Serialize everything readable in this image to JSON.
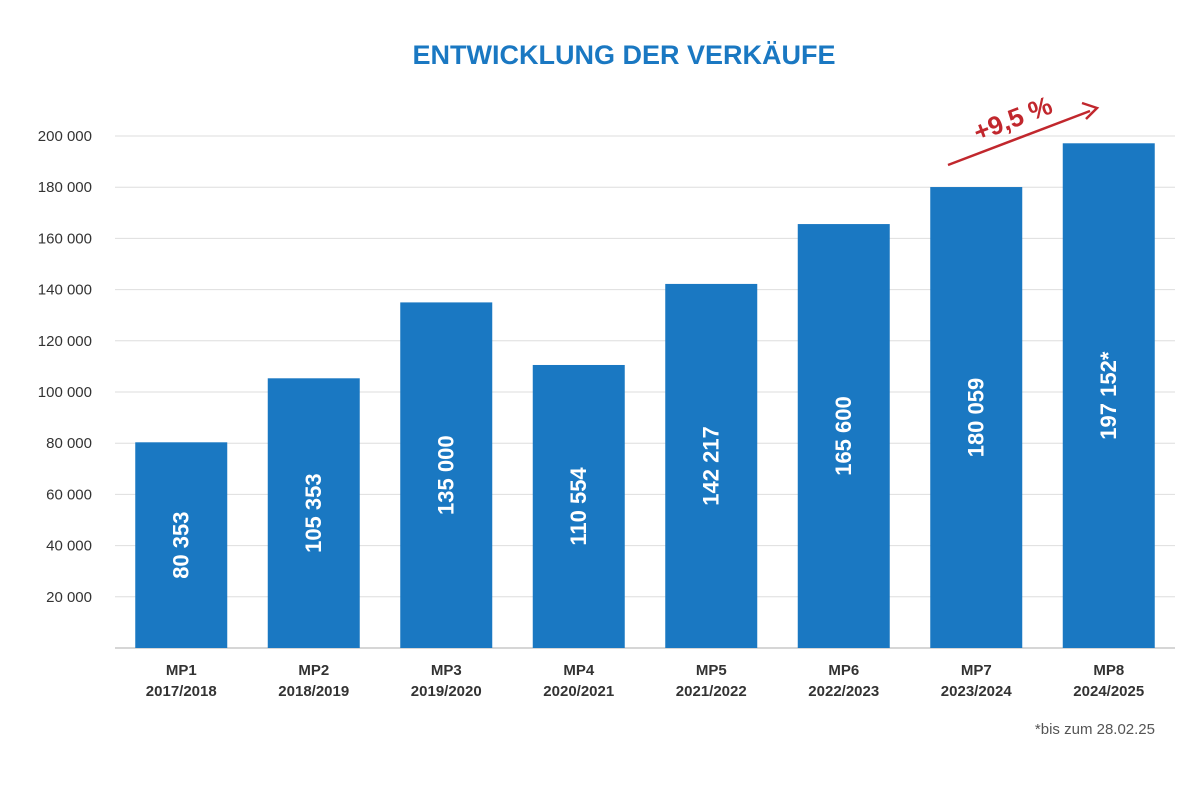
{
  "chart_data": {
    "type": "bar",
    "title": "ENTWICKLUNG DER VERKÄUFE",
    "xlabel": "",
    "ylabel": "",
    "ylim": [
      0,
      200000
    ],
    "yticks": [
      20000,
      40000,
      60000,
      80000,
      100000,
      120000,
      140000,
      160000,
      180000,
      200000
    ],
    "ytick_labels": [
      "20 000",
      "40 000",
      "60 000",
      "80 000",
      "100 000",
      "120 000",
      "140 000",
      "160 000",
      "180 000",
      "200 000"
    ],
    "grid": true,
    "bar_color": "#1a78c2",
    "categories": [
      {
        "code": "MP1",
        "period": "2017/2018"
      },
      {
        "code": "MP2",
        "period": "2018/2019"
      },
      {
        "code": "MP3",
        "period": "2019/2020"
      },
      {
        "code": "MP4",
        "period": "2020/2021"
      },
      {
        "code": "MP5",
        "period": "2021/2022"
      },
      {
        "code": "MP6",
        "period": "2022/2023"
      },
      {
        "code": "MP7",
        "period": "2023/2024"
      },
      {
        "code": "MP8",
        "period": "2024/2025"
      }
    ],
    "values": [
      80353,
      105353,
      135000,
      110554,
      142217,
      165600,
      180059,
      197152
    ],
    "value_labels": [
      "80 353",
      "105 353",
      "135 000",
      "110 554",
      "142 217",
      "165 600",
      "180 059",
      "197 152*"
    ],
    "annotation": {
      "text": "+9,5 %",
      "color": "#c1272d",
      "from_category": "MP7",
      "to_category": "MP8"
    },
    "footnote": "*bis zum 28.02.25"
  }
}
